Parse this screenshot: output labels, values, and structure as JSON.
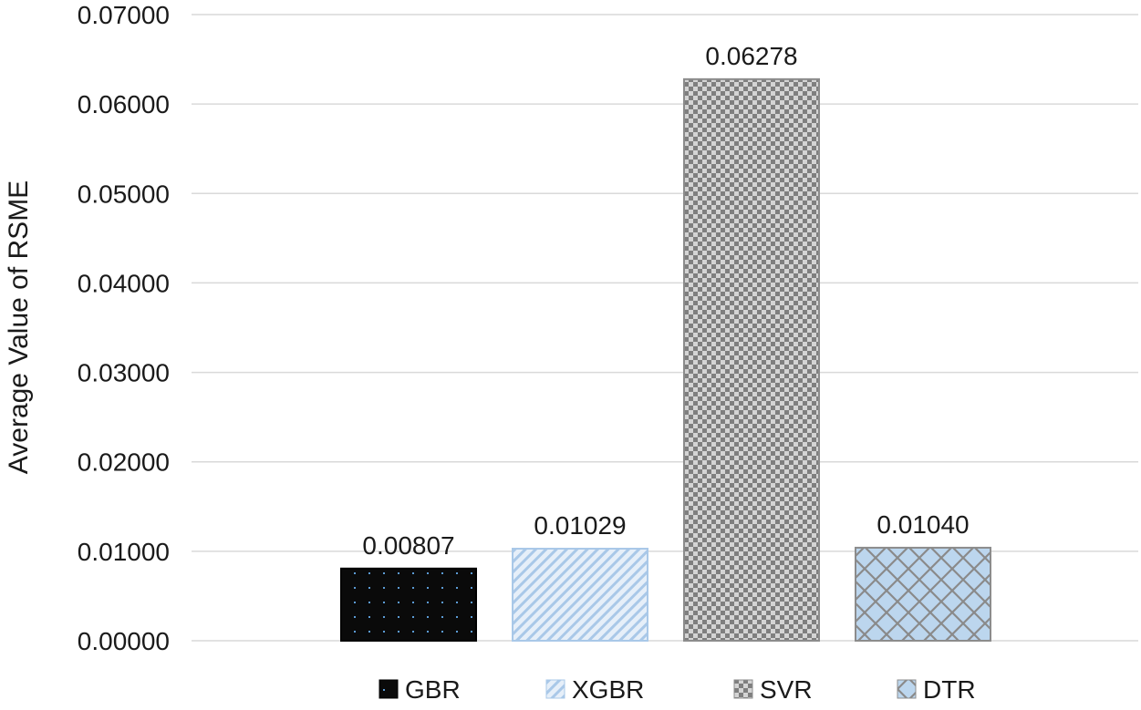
{
  "chart_data": {
    "type": "bar",
    "categories": [
      "GBR",
      "XGBR",
      "SVR",
      "DTR"
    ],
    "values": [
      0.00807,
      0.01029,
      0.06278,
      0.0104
    ],
    "data_labels": [
      "0.00807",
      "0.01029",
      "0.06278",
      "0.01040"
    ],
    "title": "",
    "xlabel": "",
    "ylabel": "Average Value of RSME",
    "ylim": [
      0,
      0.07
    ],
    "yticks": [
      0,
      0.01,
      0.02,
      0.03,
      0.04,
      0.05,
      0.06,
      0.07
    ],
    "ytick_labels": [
      "0.00000",
      "0.01000",
      "0.02000",
      "0.03000",
      "0.04000",
      "0.05000",
      "0.06000",
      "0.07000"
    ],
    "grid": true,
    "legend": {
      "position": "bottom",
      "entries": [
        "GBR",
        "XGBR",
        "SVR",
        "DTR"
      ]
    },
    "colors": {
      "GBR": "#0a0a0a",
      "XGBR": "#bcd6ee",
      "SVR": "#8c8c8c",
      "DTR": "#bcd6ee",
      "gridline": "#d9d9d9"
    },
    "patterns": {
      "GBR": "dotted",
      "XGBR": "diagonal-stripes",
      "SVR": "checkered",
      "DTR": "lattice"
    }
  }
}
